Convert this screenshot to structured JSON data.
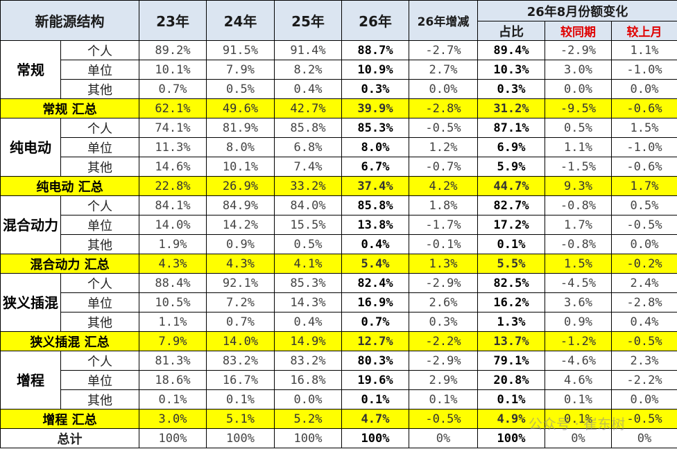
{
  "headers": {
    "structure": "新能源结构",
    "years": [
      "23年",
      "24年",
      "25年",
      "26年"
    ],
    "change": "26年增减",
    "group": "26年8月份额变化",
    "sub": [
      "占比",
      "较同期",
      "较上月"
    ]
  },
  "blocks": [
    {
      "category": "常规",
      "rows": [
        {
          "label": "个人",
          "values": [
            "89.2%",
            "91.5%",
            "91.4%",
            "88.7%",
            "-2.7%",
            "89.4%",
            "-2.9%",
            "1.1%"
          ]
        },
        {
          "label": "单位",
          "values": [
            "10.1%",
            "7.9%",
            "8.2%",
            "10.9%",
            "2.7%",
            "10.3%",
            "3.0%",
            "-1.0%"
          ]
        },
        {
          "label": "其他",
          "values": [
            "0.7%",
            "0.5%",
            "0.4%",
            "0.3%",
            "0.0%",
            "0.3%",
            "0.0%",
            "0.0%"
          ]
        }
      ],
      "summary": {
        "label": "常规 汇总",
        "values": [
          "62.1%",
          "49.6%",
          "42.7%",
          "39.9%",
          "-2.8%",
          "31.2%",
          "-9.5%",
          "-0.6%"
        ]
      }
    },
    {
      "category": "纯电动",
      "rows": [
        {
          "label": "个人",
          "values": [
            "74.1%",
            "81.9%",
            "85.8%",
            "85.3%",
            "-0.5%",
            "87.1%",
            "0.5%",
            "1.5%"
          ]
        },
        {
          "label": "单位",
          "values": [
            "11.3%",
            "8.0%",
            "6.8%",
            "8.0%",
            "1.2%",
            "6.9%",
            "1.1%",
            "-1.0%"
          ]
        },
        {
          "label": "其他",
          "values": [
            "14.6%",
            "10.1%",
            "7.4%",
            "6.7%",
            "-0.7%",
            "5.9%",
            "-1.5%",
            "-0.6%"
          ]
        }
      ],
      "summary": {
        "label": "纯电动 汇总",
        "values": [
          "22.8%",
          "26.9%",
          "33.2%",
          "37.4%",
          "4.2%",
          "44.7%",
          "9.3%",
          "1.7%"
        ]
      }
    },
    {
      "category": "混合动力",
      "rows": [
        {
          "label": "个人",
          "values": [
            "84.1%",
            "84.9%",
            "84.0%",
            "85.8%",
            "1.8%",
            "82.7%",
            "-0.8%",
            "0.5%"
          ]
        },
        {
          "label": "单位",
          "values": [
            "14.0%",
            "14.2%",
            "15.5%",
            "13.8%",
            "-1.7%",
            "17.2%",
            "1.7%",
            "-0.5%"
          ]
        },
        {
          "label": "其他",
          "values": [
            "1.9%",
            "0.9%",
            "0.5%",
            "0.4%",
            "-0.1%",
            "0.1%",
            "-0.8%",
            "0.0%"
          ]
        }
      ],
      "summary": {
        "label": "混合动力 汇总",
        "values": [
          "4.3%",
          "4.3%",
          "4.1%",
          "5.4%",
          "1.3%",
          "5.5%",
          "1.5%",
          "-0.2%"
        ]
      }
    },
    {
      "category": "狭义插混",
      "rows": [
        {
          "label": "个人",
          "values": [
            "88.4%",
            "92.1%",
            "85.3%",
            "82.4%",
            "-2.9%",
            "82.5%",
            "-4.5%",
            "2.4%"
          ]
        },
        {
          "label": "单位",
          "values": [
            "10.5%",
            "7.2%",
            "14.3%",
            "16.9%",
            "2.6%",
            "16.2%",
            "3.6%",
            "-2.8%"
          ]
        },
        {
          "label": "其他",
          "values": [
            "1.1%",
            "0.7%",
            "0.4%",
            "0.7%",
            "0.3%",
            "1.3%",
            "0.9%",
            "0.4%"
          ]
        }
      ],
      "summary": {
        "label": "狭义插混 汇总",
        "values": [
          "7.9%",
          "14.0%",
          "14.9%",
          "12.7%",
          "-2.2%",
          "13.7%",
          "-1.2%",
          "-0.5%"
        ]
      }
    },
    {
      "category": "增程",
      "rows": [
        {
          "label": "个人",
          "values": [
            "81.3%",
            "83.2%",
            "83.2%",
            "80.3%",
            "-2.9%",
            "79.1%",
            "-4.6%",
            "2.3%"
          ]
        },
        {
          "label": "单位",
          "values": [
            "18.6%",
            "16.7%",
            "16.8%",
            "19.6%",
            "2.9%",
            "20.8%",
            "4.6%",
            "-2.2%"
          ]
        },
        {
          "label": "其他",
          "values": [
            "0.1%",
            "0.1%",
            "0.0%",
            "0.1%",
            "0.1%",
            "0.1%",
            "0.1%",
            "0.0%"
          ]
        }
      ],
      "summary": {
        "label": "增程 汇总",
        "values": [
          "3.0%",
          "5.1%",
          "5.2%",
          "4.7%",
          "-0.5%",
          "4.9%",
          "0.1%",
          "-0.5%"
        ]
      }
    }
  ],
  "total": {
    "label": "总计",
    "values": [
      "100%",
      "100%",
      "100%",
      "100%",
      "0%",
      "100%",
      "0%",
      "0%"
    ]
  },
  "watermark": "公众号 · 崔东树",
  "colors": {
    "header_bg": "#dbe5f1",
    "summary_bg": "#ffff00",
    "red_header": "#e00000"
  }
}
